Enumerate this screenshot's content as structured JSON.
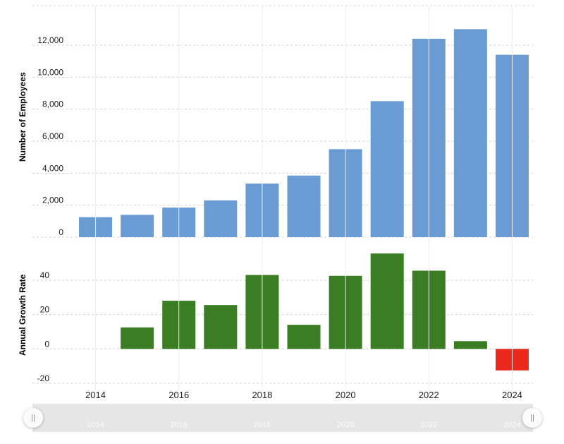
{
  "chart_data": [
    {
      "type": "bar",
      "ylabel": "Number of Employees",
      "x": [
        2014,
        2015,
        2016,
        2017,
        2018,
        2019,
        2020,
        2021,
        2022,
        2023,
        2024
      ],
      "values": [
        1250,
        1400,
        1850,
        2300,
        3350,
        3850,
        5500,
        8500,
        12400,
        13000,
        11400
      ],
      "ylim": [
        0,
        13500
      ],
      "yticks": [
        0,
        2000,
        4000,
        6000,
        8000,
        10000,
        12000
      ],
      "ytick_labels": [
        "0",
        "2,000",
        "4,000",
        "6,000",
        "8,000",
        "10,000",
        "12,000"
      ],
      "color": "#6a9bd3",
      "grid": true
    },
    {
      "type": "bar",
      "ylabel": "Annual Growth Rate",
      "x": [
        2014,
        2015,
        2016,
        2017,
        2018,
        2019,
        2020,
        2021,
        2022,
        2023,
        2024
      ],
      "values": [
        null,
        12.5,
        28,
        25.5,
        43,
        14,
        42.5,
        55.5,
        45.5,
        4.5,
        -12.5
      ],
      "ylim": [
        -20,
        58
      ],
      "yticks": [
        -20,
        0,
        20,
        40
      ],
      "ytick_labels": [
        "-20",
        "0",
        "20",
        "40"
      ],
      "positive_color": "#3a7d22",
      "negative_color": "#e8291c",
      "grid": true
    }
  ],
  "xaxis": {
    "ticks": [
      2014,
      2016,
      2018,
      2020,
      2022,
      2024
    ],
    "tick_labels": [
      "2014",
      "2016",
      "2018",
      "2020",
      "2022",
      "2024"
    ]
  },
  "navigator": {
    "tick_labels": [
      "2014",
      "2016",
      "2018",
      "2020",
      "2022",
      "2024"
    ],
    "handle_left_label": "||",
    "handle_right_label": "||"
  }
}
